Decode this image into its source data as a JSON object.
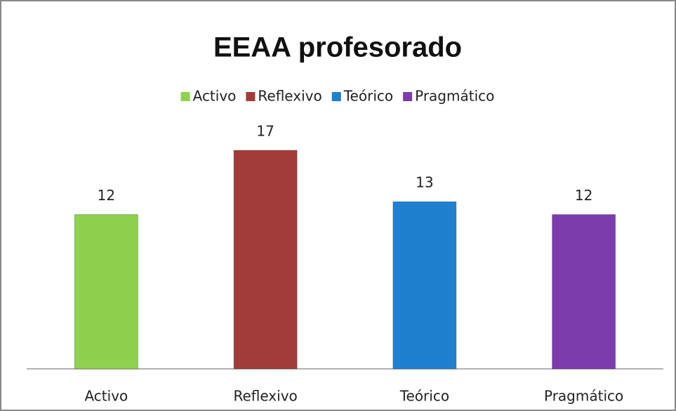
{
  "chart_data": {
    "type": "bar",
    "title": "EEAA profesorado",
    "categories": [
      "Activo",
      "Reflexivo",
      "Teórico",
      "Pragmático"
    ],
    "values": [
      12,
      17,
      13,
      12
    ],
    "colors": [
      "#8fd14f",
      "#a23c3a",
      "#1f80d2",
      "#7c3cad"
    ],
    "ylim": [
      0,
      20
    ],
    "legend": "top"
  }
}
